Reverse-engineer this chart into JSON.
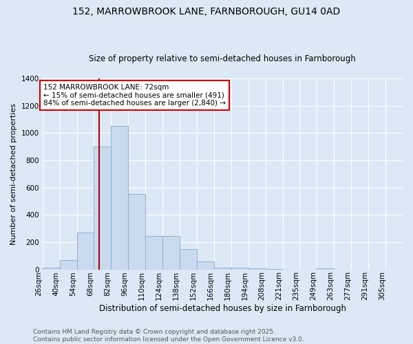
{
  "title": "152, MARROWBROOK LANE, FARNBOROUGH, GU14 0AD",
  "subtitle": "Size of property relative to semi-detached houses in Farnborough",
  "xlabel": "Distribution of semi-detached houses by size in Farnborough",
  "ylabel": "Number of semi-detached properties",
  "bin_labels": [
    "26sqm",
    "40sqm",
    "54sqm",
    "68sqm",
    "82sqm",
    "96sqm",
    "110sqm",
    "124sqm",
    "138sqm",
    "152sqm",
    "166sqm",
    "180sqm",
    "194sqm",
    "208sqm",
    "221sqm",
    "235sqm",
    "249sqm",
    "263sqm",
    "277sqm",
    "291sqm",
    "305sqm"
  ],
  "bar_heights": [
    12,
    68,
    270,
    900,
    1050,
    555,
    245,
    245,
    148,
    60,
    14,
    13,
    10,
    5,
    0,
    0,
    8,
    0,
    0,
    0,
    0
  ],
  "bar_color": "#c9d9ee",
  "bar_edge_color": "#8aabce",
  "property_line_x": 3,
  "red_line_color": "#aa0000",
  "annotation_text": "152 MARROWBROOK LANE: 72sqm\n← 15% of semi-detached houses are smaller (491)\n84% of semi-detached houses are larger (2,840) →",
  "annotation_box_color": "#ffffff",
  "annotation_box_edge_color": "#cc0000",
  "ylim": [
    0,
    1400
  ],
  "yticks": [
    0,
    200,
    400,
    600,
    800,
    1000,
    1200,
    1400
  ],
  "background_color": "#dce8f5",
  "footer_line1": "Contains HM Land Registry data © Crown copyright and database right 2025.",
  "footer_line2": "Contains public sector information licensed under the Open Government Licence v3.0.",
  "title_fontsize": 10,
  "subtitle_fontsize": 8.5,
  "xlabel_fontsize": 8.5,
  "ylabel_fontsize": 8,
  "tick_fontsize": 7.5,
  "annotation_fontsize": 7.5,
  "footer_fontsize": 6.5
}
